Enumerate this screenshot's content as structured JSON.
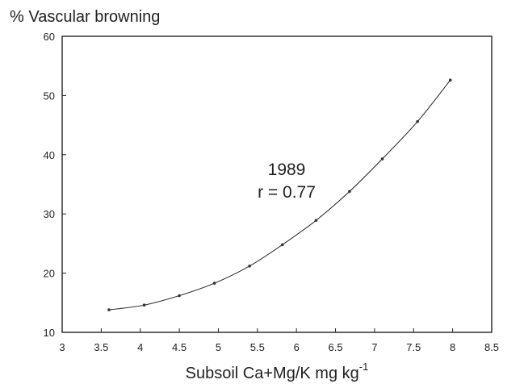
{
  "chart_data": {
    "type": "line",
    "ylabel": "% Vascular browning",
    "xlabel": "Subsoil Ca+Mg/K mg kg",
    "xlabel_superscript": "-1",
    "xlim": [
      3,
      8.5
    ],
    "ylim": [
      10,
      60
    ],
    "x_ticks": [
      "3",
      "3.5",
      "4",
      "4.5",
      "5",
      "5.5",
      "6",
      "6.5",
      "7",
      "7.5",
      "8",
      "8.5"
    ],
    "y_ticks": [
      "10",
      "20",
      "30",
      "40",
      "50",
      "60"
    ],
    "x_tick_values": [
      3,
      3.5,
      4,
      4.5,
      5,
      5.5,
      6,
      6.5,
      7,
      7.5,
      8,
      8.5
    ],
    "y_tick_values": [
      10,
      20,
      30,
      40,
      50,
      60
    ],
    "annotations": [
      "1989",
      "r = 0.77"
    ],
    "grid": false,
    "series": [
      {
        "x": [
          3.6,
          4.05,
          4.5,
          4.95,
          5.4,
          5.82,
          6.25,
          6.68,
          7.1,
          7.55,
          7.97
        ],
        "values": [
          13.8,
          14.6,
          16.2,
          18.3,
          21.2,
          24.8,
          28.9,
          33.8,
          39.3,
          45.6,
          52.6
        ]
      }
    ]
  }
}
